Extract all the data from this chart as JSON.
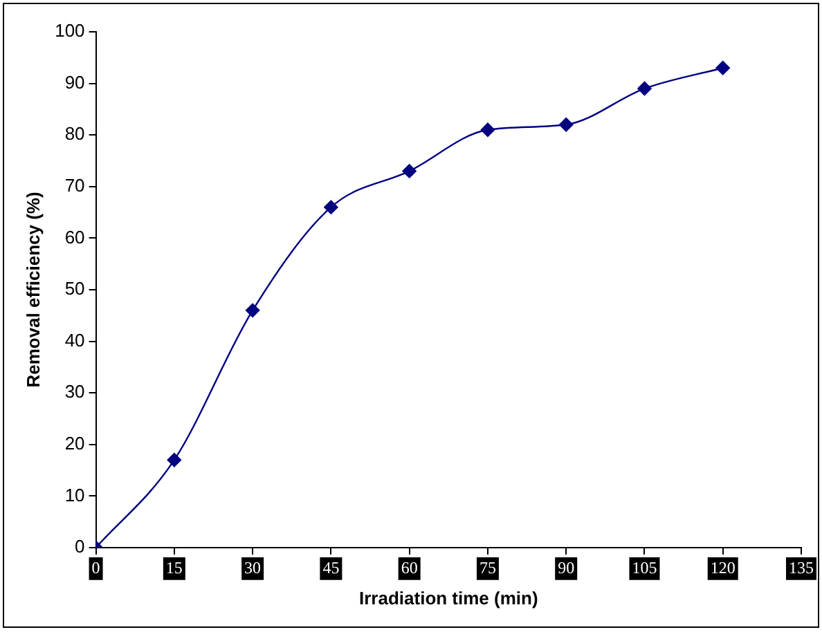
{
  "chart_data": {
    "type": "line",
    "xlabel": "Irradiation time (min)",
    "ylabel": "Removal efficiency (%)",
    "x": [
      0,
      15,
      30,
      45,
      60,
      75,
      90,
      105,
      120
    ],
    "series": [
      {
        "color": "#000080",
        "values": [
          0,
          17,
          46,
          66,
          73,
          81,
          82,
          89,
          93
        ]
      }
    ],
    "xlim": [
      0,
      135
    ],
    "xticks": [
      0,
      15,
      30,
      45,
      60,
      75,
      90,
      105,
      120,
      135
    ],
    "ylim": [
      0,
      100
    ],
    "yticks": [
      0,
      10,
      20,
      30,
      40,
      50,
      60,
      70,
      80,
      90,
      100
    ],
    "grid": false,
    "legend": false,
    "marker": "diamond",
    "line_style": "solid"
  }
}
